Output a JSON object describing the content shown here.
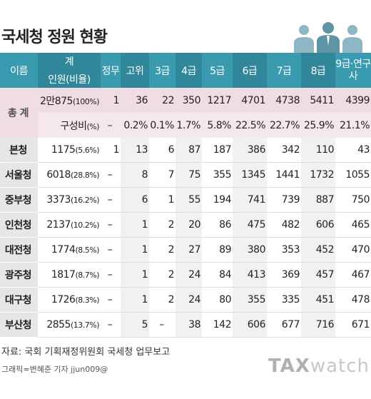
{
  "title": "국세청 정원 현황",
  "columns": {
    "name": "이름",
    "total_top": "계",
    "total_sub": "인원(비율)",
    "levels": [
      "정무",
      "고위",
      "3급",
      "4급",
      "5급",
      "6급",
      "7급",
      "8급",
      "9급·연구사"
    ]
  },
  "total_row": {
    "label": "총 계",
    "persons_main": "2만875",
    "persons_pct": "(100%)",
    "values": [
      "1",
      "36",
      "22",
      "350",
      "1217",
      "4701",
      "4738",
      "5411",
      "4399"
    ],
    "composition_label": "구성비",
    "composition_unit": "(%)",
    "composition": [
      "–",
      "0.2%",
      "0.1%",
      "1.7%",
      "5.8%",
      "22.5%",
      "22.7%",
      "25.9%",
      "21.1%"
    ]
  },
  "rows": [
    {
      "name": "본청",
      "persons": "1175",
      "pct": "(5.6%)",
      "values": [
        "1",
        "13",
        "6",
        "87",
        "187",
        "386",
        "342",
        "110",
        "43"
      ]
    },
    {
      "name": "서울청",
      "persons": "6018",
      "pct": "(28.8%)",
      "values": [
        "–",
        "8",
        "7",
        "75",
        "355",
        "1345",
        "1441",
        "1732",
        "1055"
      ]
    },
    {
      "name": "중부청",
      "persons": "3373",
      "pct": "(16.2%)",
      "values": [
        "–",
        "6",
        "1",
        "55",
        "194",
        "741",
        "739",
        "887",
        "750"
      ]
    },
    {
      "name": "인천청",
      "persons": "2137",
      "pct": "(10.2%)",
      "values": [
        "–",
        "1",
        "2",
        "20",
        "86",
        "475",
        "482",
        "606",
        "465"
      ]
    },
    {
      "name": "대전청",
      "persons": "1774",
      "pct": "(8.5%)",
      "values": [
        "–",
        "1",
        "2",
        "27",
        "89",
        "380",
        "353",
        "452",
        "470"
      ]
    },
    {
      "name": "광주청",
      "persons": "1817",
      "pct": "(8.7%)",
      "values": [
        "–",
        "1",
        "2",
        "24",
        "84",
        "413",
        "369",
        "457",
        "467"
      ]
    },
    {
      "name": "대구청",
      "persons": "1726",
      "pct": "(8.3%)",
      "values": [
        "–",
        "1",
        "2",
        "24",
        "80",
        "355",
        "335",
        "451",
        "478"
      ]
    },
    {
      "name": "부산청",
      "persons": "2855",
      "pct": "(13.7%)",
      "values": [
        "–",
        "5",
        "–",
        "38",
        "142",
        "606",
        "677",
        "716",
        "671"
      ]
    }
  ],
  "source": "자료: 국회 기획재정위원회 국세청 업무보고",
  "credit": "그래픽=변혜준 기자 jjun009@",
  "brand": {
    "bold": "TAX",
    "light": "watch"
  },
  "colors": {
    "header": "#3a9bb0",
    "header_dark": "#2f8799",
    "total_bg": "#efdde3",
    "name_bg": "#e6e6e6",
    "icon": "#7fa9b8"
  },
  "chart_data": {
    "type": "table",
    "title": "국세청 정원 현황",
    "categories": [
      "정무",
      "고위",
      "3급",
      "4급",
      "5급",
      "6급",
      "7급",
      "8급",
      "9급·연구사"
    ],
    "series": [
      {
        "name": "총 계",
        "values": [
          1,
          36,
          22,
          350,
          1217,
          4701,
          4738,
          5411,
          4399
        ]
      },
      {
        "name": "본청",
        "values": [
          1,
          13,
          6,
          87,
          187,
          386,
          342,
          110,
          43
        ]
      },
      {
        "name": "서울청",
        "values": [
          0,
          8,
          7,
          75,
          355,
          1345,
          1441,
          1732,
          1055
        ]
      },
      {
        "name": "중부청",
        "values": [
          0,
          6,
          1,
          55,
          194,
          741,
          739,
          887,
          750
        ]
      },
      {
        "name": "인천청",
        "values": [
          0,
          1,
          2,
          20,
          86,
          475,
          482,
          606,
          465
        ]
      },
      {
        "name": "대전청",
        "values": [
          0,
          1,
          2,
          27,
          89,
          380,
          353,
          452,
          470
        ]
      },
      {
        "name": "광주청",
        "values": [
          0,
          1,
          2,
          24,
          84,
          413,
          369,
          457,
          467
        ]
      },
      {
        "name": "대구청",
        "values": [
          0,
          1,
          2,
          24,
          80,
          355,
          335,
          451,
          478
        ]
      },
      {
        "name": "부산청",
        "values": [
          0,
          5,
          0,
          38,
          142,
          606,
          677,
          716,
          671
        ]
      }
    ]
  }
}
